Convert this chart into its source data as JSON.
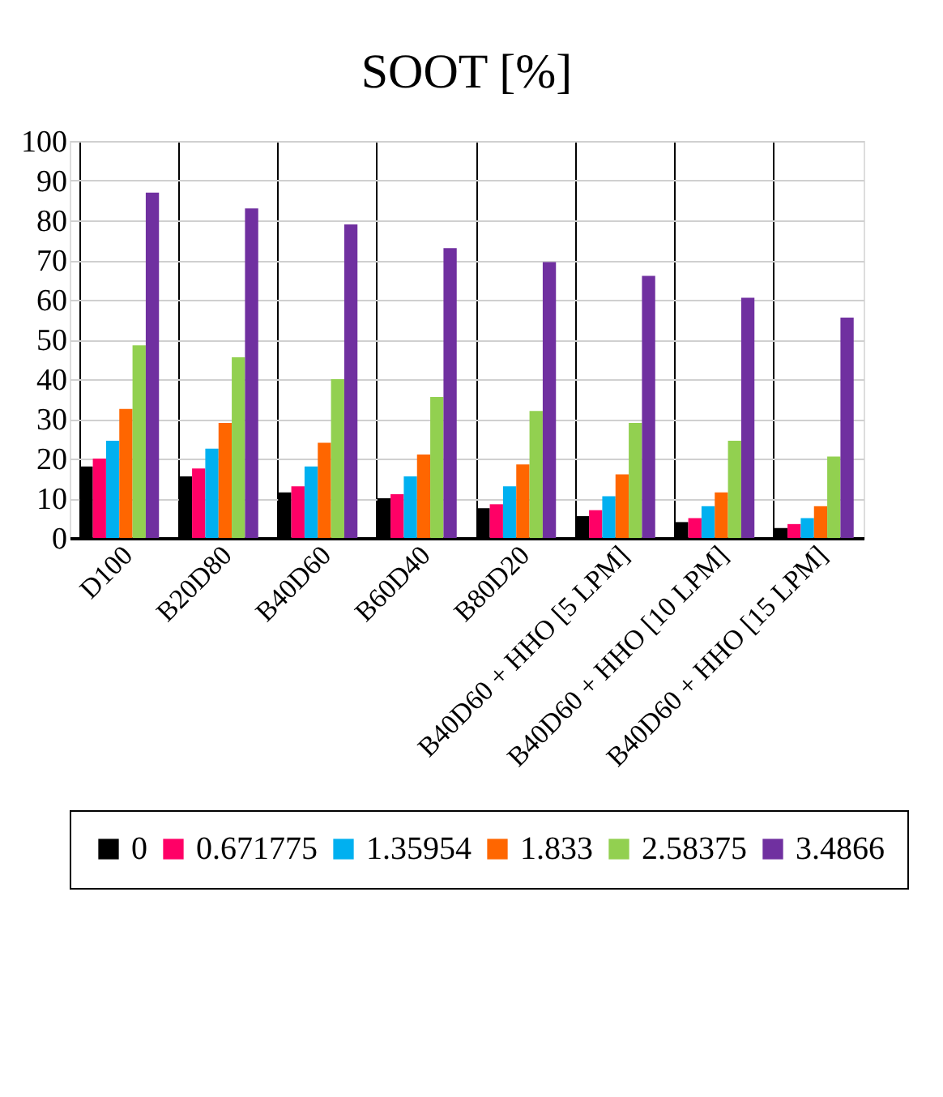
{
  "chart_data": {
    "type": "bar",
    "title": "SOOT [%]",
    "categories": [
      "D100",
      "B20D80",
      "B40D60",
      "B60D40",
      "B80D20",
      "B40D60 + HHO [5 LPM]",
      "B40D60 + HHO [10 LPM]",
      "B40D60 + HHO [15 LPM]"
    ],
    "series": [
      {
        "name": "0",
        "color": "#000000",
        "values": [
          18,
          15.5,
          11.5,
          10,
          7.5,
          5.5,
          4,
          2.5
        ]
      },
      {
        "name": "0.671775",
        "color": "#ff0066",
        "values": [
          20,
          17.5,
          13,
          11,
          8.5,
          7,
          5,
          3.5
        ]
      },
      {
        "name": "1.35954",
        "color": "#00b0f0",
        "values": [
          24.5,
          22.5,
          18,
          15.5,
          13,
          10.5,
          8,
          5
        ]
      },
      {
        "name": "1.833",
        "color": "#ff6600",
        "values": [
          32.5,
          29,
          24,
          21,
          18.5,
          16,
          11.5,
          8
        ]
      },
      {
        "name": "2.58375",
        "color": "#92d050",
        "values": [
          48.5,
          45.5,
          40,
          35.5,
          32,
          29,
          24.5,
          20.5
        ]
      },
      {
        "name": "3.4866",
        "color": "#7030a0",
        "values": [
          87,
          83,
          79,
          73,
          69.5,
          66,
          60.5,
          55.5
        ]
      }
    ],
    "ylim": [
      0,
      100
    ],
    "yticks": [
      0,
      10,
      20,
      30,
      40,
      50,
      60,
      70,
      80,
      90,
      100
    ],
    "grid": true,
    "legend": "bottom"
  }
}
